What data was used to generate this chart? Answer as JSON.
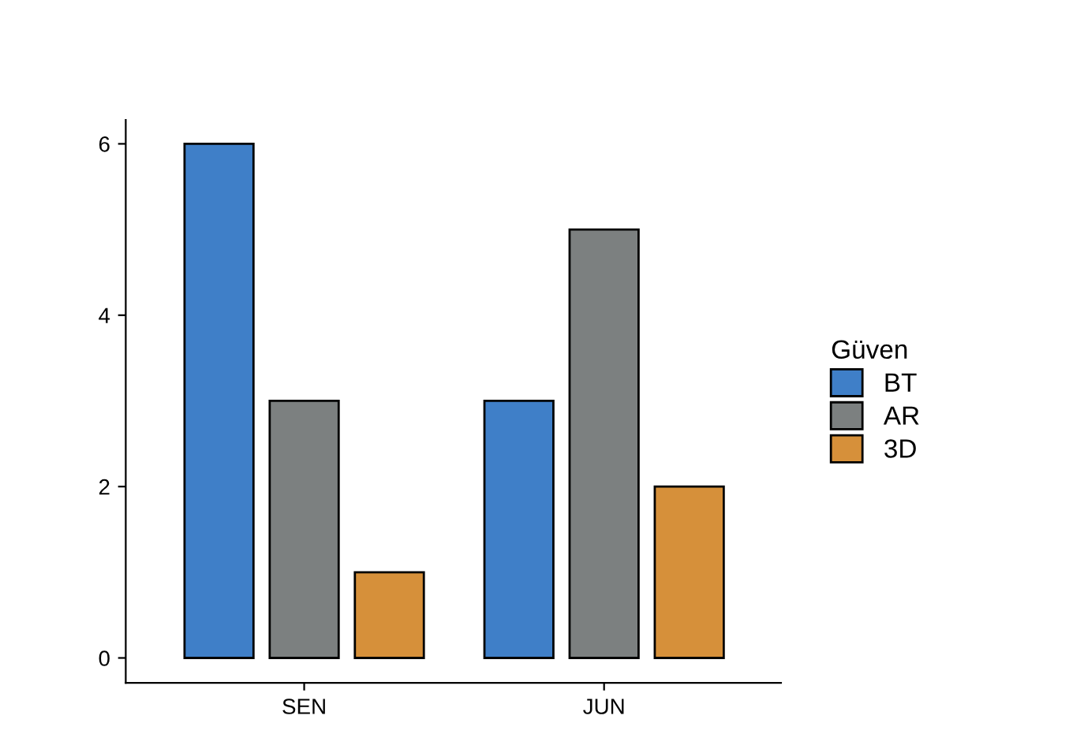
{
  "chart_data": {
    "type": "bar",
    "categories": [
      "SEN",
      "JUN"
    ],
    "series": [
      {
        "name": "BT",
        "color": "#3f7fc8",
        "values": [
          6,
          3
        ]
      },
      {
        "name": "AR",
        "color": "#7c8080",
        "values": [
          3,
          5
        ]
      },
      {
        "name": "3D",
        "color": "#d6903a",
        "values": [
          1,
          2
        ]
      }
    ],
    "legend_title": "Güven",
    "legend": "right",
    "ylim": [
      -0.29,
      6.28
    ],
    "yticks": [
      0,
      2,
      4,
      6
    ],
    "grid": false
  }
}
